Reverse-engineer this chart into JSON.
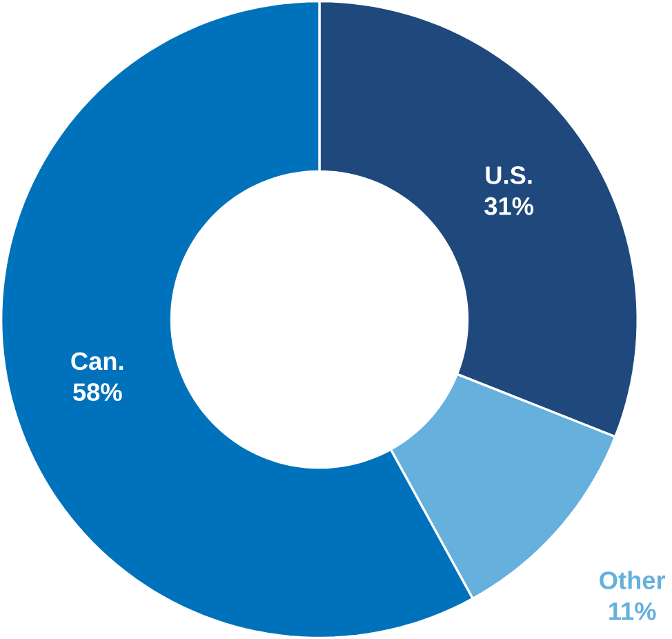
{
  "chart_data": {
    "type": "donut",
    "categories": [
      "U.S.",
      "Other",
      "Can."
    ],
    "values": [
      31,
      11,
      58
    ],
    "value_labels": [
      "31%",
      "11%",
      "58%"
    ],
    "colors": [
      "#1f497d",
      "#65b0dc",
      "#0072bb"
    ]
  }
}
